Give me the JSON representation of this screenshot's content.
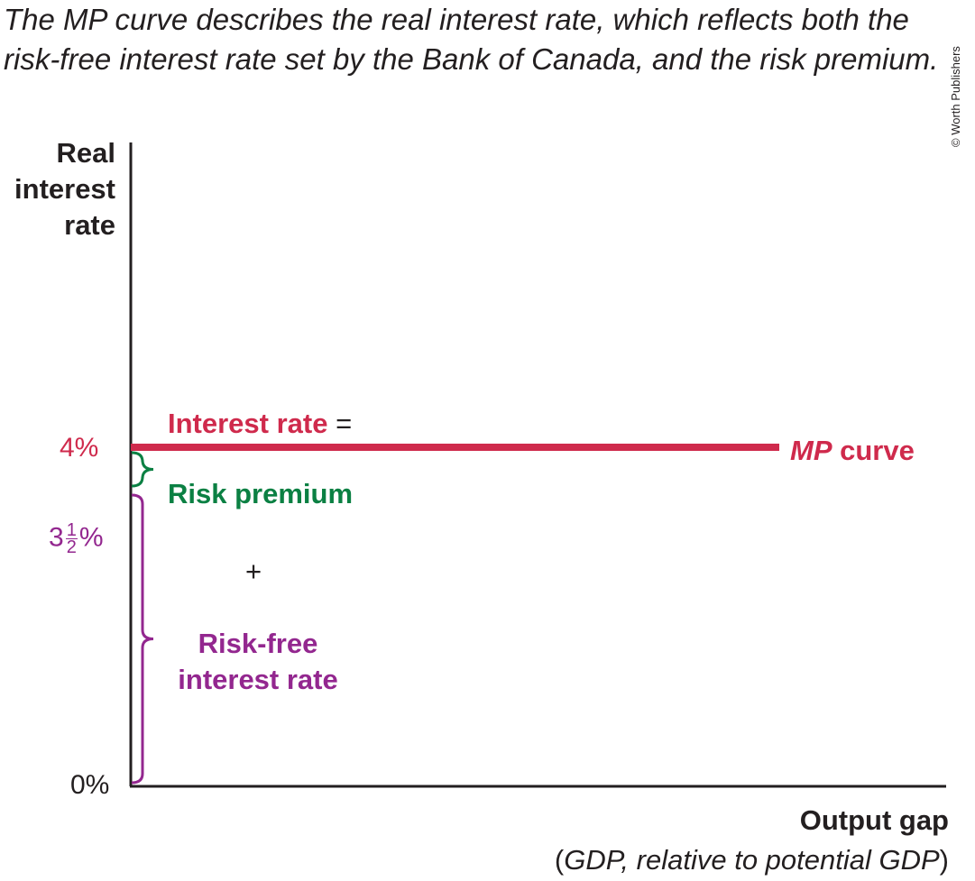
{
  "caption": "The MP curve describes the real interest rate, which reflects both the risk-free interest rate set by the Bank of Canada, and the risk premium.",
  "credit": "© Worth Publishers",
  "colors": {
    "mp_curve": "#cf2a4c",
    "risk_premium": "#0b8043",
    "risk_free": "#93278f",
    "axis": "#231f20"
  },
  "chart_data": {
    "type": "line",
    "ylabel_lines": [
      "Real",
      "interest",
      "rate"
    ],
    "xlabel": "Output gap",
    "xlabel_sub_open": "(",
    "xlabel_sub_italic": "GDP, relative to potential GDP",
    "xlabel_sub_close": ")",
    "yticks": {
      "top": "4%",
      "middle_whole": "3",
      "middle_num": "1",
      "middle_den": "2",
      "middle_pct": "%",
      "bottom": "0%"
    },
    "ylim": [
      0,
      4.7
    ],
    "series": [
      {
        "name_italic": "MP",
        "name_rest": " curve",
        "y": 4,
        "color": "#cf2a4c"
      }
    ],
    "annotations": {
      "interest_rate": "Interest rate",
      "equals": "=",
      "risk_premium": "Risk premium",
      "plus": "+",
      "risk_free_lines": [
        "Risk-free",
        "interest rate"
      ]
    },
    "brackets": [
      {
        "name": "risk-premium",
        "from": 3.5,
        "to": 4,
        "color": "#0b8043"
      },
      {
        "name": "risk-free",
        "from": 0,
        "to": 3.5,
        "color": "#93278f"
      }
    ]
  }
}
